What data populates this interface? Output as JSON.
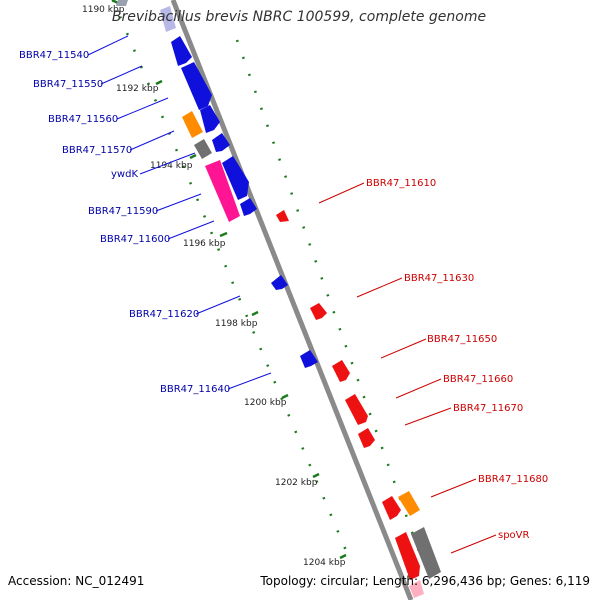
{
  "title": "Brevibacillus brevis NBRC 100599, complete genome",
  "accession": "Accession: NC_012491",
  "topology": "Topology: circular; Length: 6,296,436 bp; Genes: 6,119",
  "colors": {
    "backbone": "#888888",
    "ticks": "#1f7a1f",
    "forward_label": "#0000aa",
    "reverse_label": "#cc0000",
    "blue": "#1010dd",
    "red": "#ee1111",
    "orange": "#ff8c00",
    "gray": "#707070",
    "pink": "#ff1493"
  },
  "kbp_labels": [
    "1190 kbp",
    "1192 kbp",
    "1194 kbp",
    "1196 kbp",
    "1198 kbp",
    "1200 kbp",
    "1202 kbp",
    "1204 kbp"
  ],
  "forward_genes": [
    "BBR47_11540",
    "BBR47_11550",
    "BBR47_11560",
    "BBR47_11570",
    "ywdK",
    "BBR47_11590",
    "BBR47_11600",
    "BBR47_11620",
    "BBR47_11640"
  ],
  "reverse_genes": [
    "BBR47_11610",
    "BBR47_11630",
    "BBR47_11650",
    "BBR47_11660",
    "BBR47_11670",
    "BBR47_11680",
    "spoVR"
  ]
}
